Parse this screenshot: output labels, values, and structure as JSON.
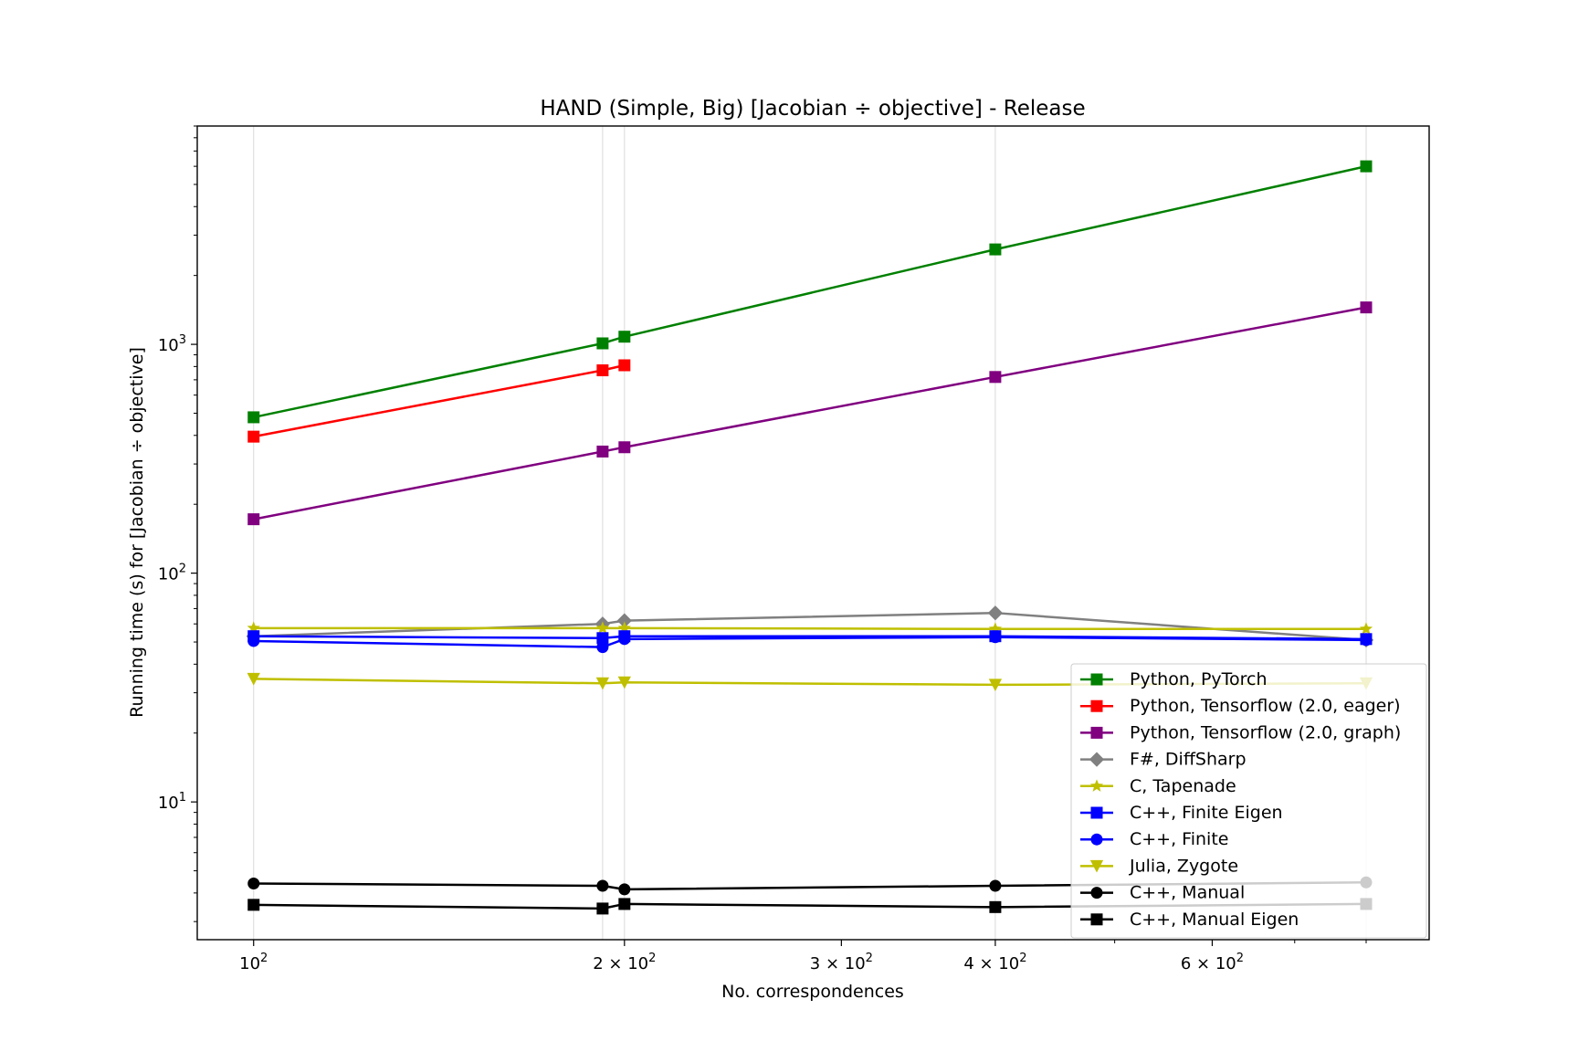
{
  "chart_data": {
    "type": "line",
    "title": "HAND (Simple, Big) [Jacobian ÷ objective] - Release",
    "xlabel": "No. correspondences",
    "ylabel": "Running time (s) for [Jacobian ÷ objective]",
    "xscale": "log",
    "yscale": "log",
    "xlim": [
      90,
      900
    ],
    "ylim": [
      2.5,
      9000
    ],
    "grid": "vertical at data x values",
    "legend_position": "lower right",
    "x_ticks": [
      {
        "value": 100,
        "base": "10",
        "exp": "2"
      },
      {
        "value": 200,
        "base": "2 × 10",
        "exp": "2"
      },
      {
        "value": 300,
        "base": "3 × 10",
        "exp": "2"
      },
      {
        "value": 400,
        "base": "4 × 10",
        "exp": "2"
      },
      {
        "value": 600,
        "base": "6 × 10",
        "exp": "2"
      }
    ],
    "y_ticks": [
      {
        "value": 10,
        "base": "10",
        "exp": "1"
      },
      {
        "value": 100,
        "base": "10",
        "exp": "2"
      },
      {
        "value": 1000,
        "base": "10",
        "exp": "3"
      }
    ],
    "x_grid": [
      100,
      192,
      200,
      400,
      800
    ],
    "series": [
      {
        "name": "Python, PyTorch",
        "color": "#008000",
        "marker": "square",
        "x": [
          100,
          192,
          200,
          400,
          800
        ],
        "y": [
          480,
          1010,
          1080,
          2600,
          6000
        ]
      },
      {
        "name": "Python, Tensorflow (2.0, eager)",
        "color": "#ff0000",
        "marker": "square",
        "x": [
          100,
          192,
          200
        ],
        "y": [
          395,
          770,
          810
        ]
      },
      {
        "name": "Python, Tensorflow (2.0, graph)",
        "color": "#800080",
        "marker": "square",
        "x": [
          100,
          192,
          200,
          400,
          800
        ],
        "y": [
          172,
          340,
          355,
          720,
          1450
        ]
      },
      {
        "name": "F#, DiffSharp",
        "color": "#808080",
        "marker": "diamond",
        "x": [
          100,
          192,
          200,
          400,
          800
        ],
        "y": [
          53,
          60,
          62,
          67,
          51
        ]
      },
      {
        "name": "C, Tapenade",
        "color": "#bfbf00",
        "marker": "star",
        "x": [
          100,
          192,
          200,
          400,
          800
        ],
        "y": [
          57.5,
          57.5,
          57.5,
          57,
          57
        ]
      },
      {
        "name": "C++, Finite Eigen",
        "color": "#0000ff",
        "marker": "square",
        "x": [
          100,
          192,
          200,
          400,
          800
        ],
        "y": [
          53,
          52,
          53,
          53,
          51.5
        ]
      },
      {
        "name": "C++, Finite",
        "color": "#0000ff",
        "marker": "circle",
        "x": [
          100,
          192,
          200,
          400,
          800
        ],
        "y": [
          50.5,
          47.5,
          51.5,
          52.5,
          51
        ]
      },
      {
        "name": "Julia, Zygote",
        "color": "#bfbf00",
        "marker": "triangle-down",
        "x": [
          100,
          192,
          200,
          400,
          800
        ],
        "y": [
          34.5,
          33,
          33.3,
          32.5,
          33
        ]
      },
      {
        "name": "C++, Manual",
        "color": "#000000",
        "marker": "circle",
        "x": [
          100,
          192,
          200,
          400,
          800
        ],
        "y": [
          4.4,
          4.3,
          4.15,
          4.3,
          4.45
        ]
      },
      {
        "name": "C++, Manual Eigen",
        "color": "#000000",
        "marker": "square",
        "x": [
          100,
          192,
          200,
          400,
          800
        ],
        "y": [
          3.55,
          3.42,
          3.58,
          3.47,
          3.58
        ]
      }
    ]
  }
}
